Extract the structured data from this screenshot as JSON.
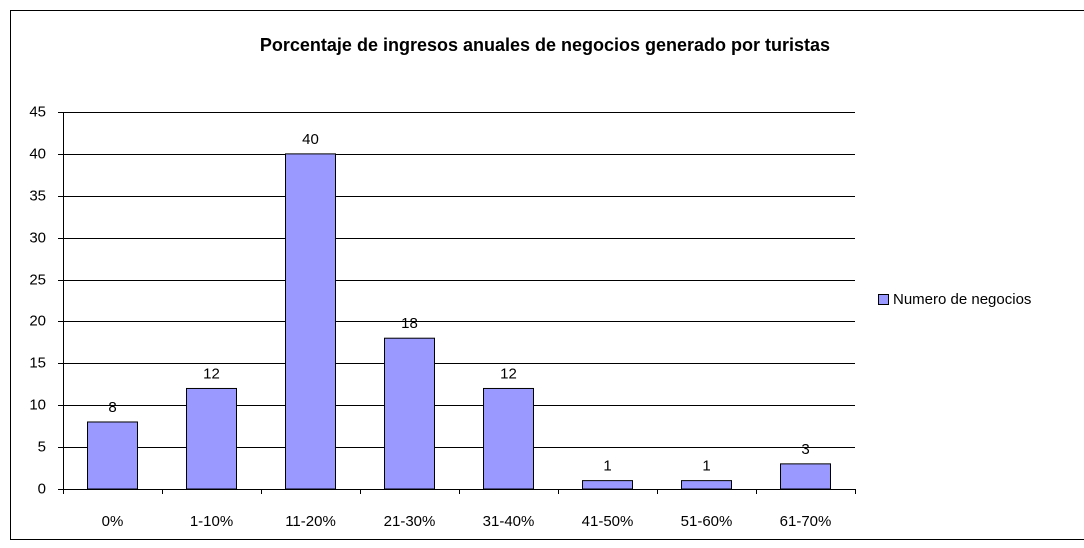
{
  "chart_data": {
    "type": "bar",
    "title": "Porcentaje de ingresos anuales de negocios generado por turistas",
    "categories": [
      "0%",
      "1-10%",
      "11-20%",
      "21-30%",
      "31-40%",
      "41-50%",
      "51-60%",
      "61-70%"
    ],
    "series": [
      {
        "name": "Numero de negocios",
        "color": "#9999ff",
        "values": [
          8,
          12,
          40,
          18,
          12,
          1,
          1,
          3
        ]
      }
    ],
    "ylim": [
      0,
      45
    ],
    "yticks": [
      0,
      5,
      10,
      15,
      20,
      25,
      30,
      35,
      40,
      45
    ],
    "grid": true,
    "legend": "right"
  }
}
